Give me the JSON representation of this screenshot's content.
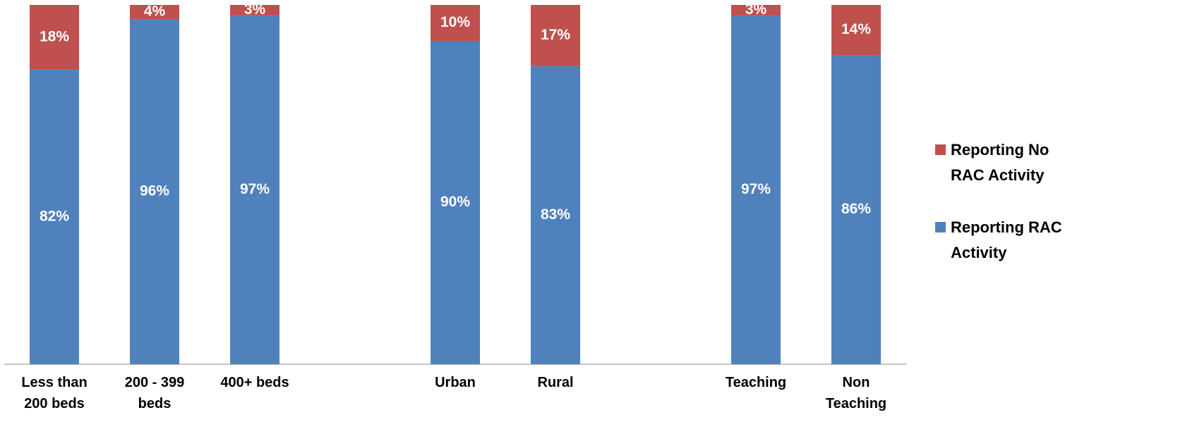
{
  "chart_data": {
    "type": "stacked_bar",
    "categories": [
      "Less than 200 beds",
      "200 - 399 beds",
      "400+ beds",
      null,
      "Urban",
      "Rural",
      null,
      "Teaching",
      "Non Teaching"
    ],
    "series": [
      {
        "name": "Reporting RAC Activity",
        "color": "#4f81bd",
        "values": [
          82,
          96,
          97,
          null,
          90,
          83,
          null,
          97,
          86
        ],
        "value_labels": [
          "82%",
          "96%",
          "97%",
          null,
          "90%",
          "83%",
          null,
          "97%",
          "86%"
        ]
      },
      {
        "name": "Reporting No RAC Activity",
        "color": "#c0504d",
        "values": [
          18,
          4,
          3,
          null,
          10,
          17,
          null,
          3,
          14
        ],
        "value_labels": [
          "18%",
          "4%",
          "3%",
          null,
          "10%",
          "17%",
          null,
          "3%",
          "14%"
        ]
      }
    ],
    "ylim": [
      0,
      100
    ],
    "legend": "right"
  }
}
